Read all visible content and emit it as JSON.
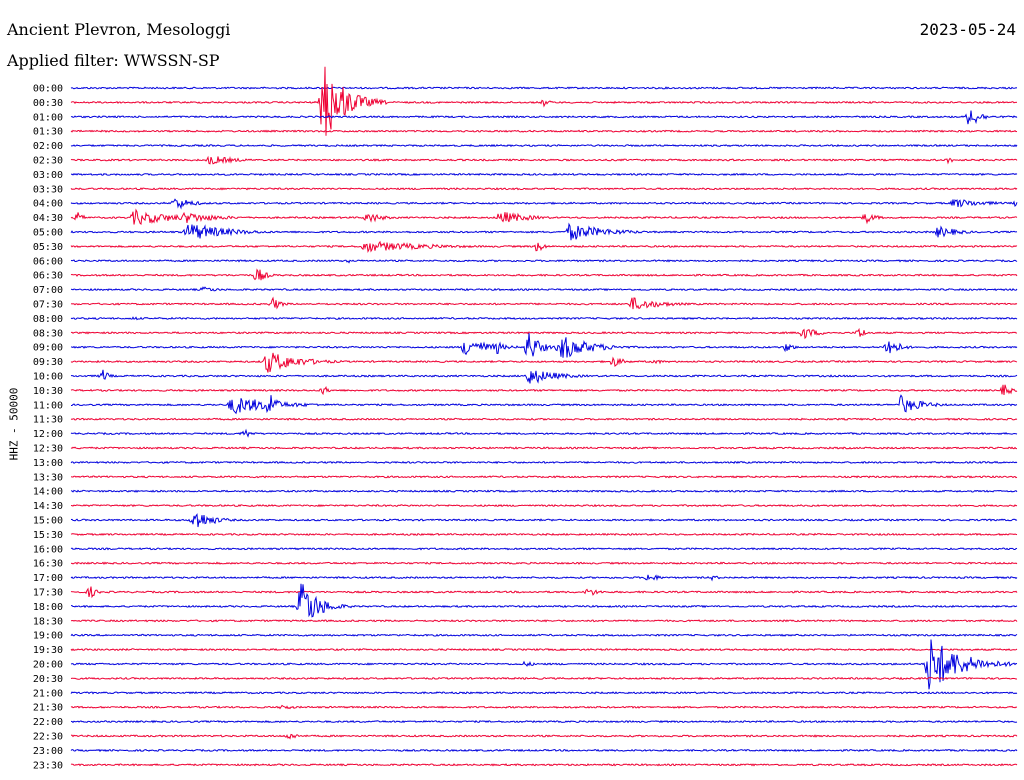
{
  "header": {
    "station": "Ancient Plevron, Mesologgi",
    "date": "2023-05-24",
    "filter_label": "Applied filter: WWSSN-SP"
  },
  "chart_data": {
    "type": "line",
    "title": "Ancient Plevron, Mesologgi",
    "ylabel": "HHZ - 50000",
    "colors": {
      "even": "#0000dd",
      "odd": "#ee0033"
    },
    "rows": [
      "00:00",
      "00:30",
      "01:00",
      "01:30",
      "02:00",
      "02:30",
      "03:00",
      "03:30",
      "04:00",
      "04:30",
      "05:00",
      "05:30",
      "06:00",
      "06:30",
      "07:00",
      "07:30",
      "08:00",
      "08:30",
      "09:00",
      "09:30",
      "10:00",
      "10:30",
      "11:00",
      "11:30",
      "12:00",
      "12:30",
      "13:00",
      "13:30",
      "14:00",
      "14:30",
      "15:00",
      "15:30",
      "16:00",
      "16:30",
      "17:00",
      "17:30",
      "18:00",
      "18:30",
      "19:00",
      "19:30",
      "20:00",
      "20:30",
      "21:00",
      "21:30",
      "22:00",
      "22:30",
      "23:00",
      "23:30"
    ],
    "x_range_minutes": [
      0,
      30
    ],
    "events": [
      {
        "row": 1,
        "t": 8.0,
        "amp": 45,
        "dur": 1.0
      },
      {
        "row": 1,
        "t": 15.0,
        "amp": 4,
        "dur": 0.3
      },
      {
        "row": 2,
        "t": 28.5,
        "amp": 12,
        "dur": 0.5
      },
      {
        "row": 5,
        "t": 4.4,
        "amp": 5,
        "dur": 1.2
      },
      {
        "row": 5,
        "t": 27.8,
        "amp": 3,
        "dur": 0.5
      },
      {
        "row": 8,
        "t": 3.3,
        "amp": 7,
        "dur": 0.8
      },
      {
        "row": 8,
        "t": 28.0,
        "amp": 5,
        "dur": 1.5
      },
      {
        "row": 8,
        "t": 30.0,
        "amp": 5,
        "dur": 1.0
      },
      {
        "row": 9,
        "t": 0.2,
        "amp": 6,
        "dur": 0.3
      },
      {
        "row": 9,
        "t": 2.0,
        "amp": 8,
        "dur": 2.0
      },
      {
        "row": 9,
        "t": 3.6,
        "amp": 6,
        "dur": 1.6
      },
      {
        "row": 9,
        "t": 9.4,
        "amp": 6,
        "dur": 0.7
      },
      {
        "row": 9,
        "t": 13.6,
        "amp": 7,
        "dur": 1.3
      },
      {
        "row": 9,
        "t": 25.2,
        "amp": 6,
        "dur": 0.5
      },
      {
        "row": 10,
        "t": 3.7,
        "amp": 10,
        "dur": 1.8
      },
      {
        "row": 10,
        "t": 15.8,
        "amp": 9,
        "dur": 1.8
      },
      {
        "row": 10,
        "t": 27.5,
        "amp": 6,
        "dur": 1.0
      },
      {
        "row": 11,
        "t": 9.3,
        "amp": 6,
        "dur": 3.0
      },
      {
        "row": 11,
        "t": 14.8,
        "amp": 7,
        "dur": 0.3
      },
      {
        "row": 12,
        "t": 8.8,
        "amp": 2,
        "dur": 0.3
      },
      {
        "row": 13,
        "t": 5.9,
        "amp": 9,
        "dur": 0.4
      },
      {
        "row": 14,
        "t": 4.2,
        "amp": 3,
        "dur": 0.8
      },
      {
        "row": 15,
        "t": 6.4,
        "amp": 7,
        "dur": 0.4
      },
      {
        "row": 15,
        "t": 17.8,
        "amp": 7,
        "dur": 1.4
      },
      {
        "row": 16,
        "t": 2.0,
        "amp": 2,
        "dur": 0.5
      },
      {
        "row": 17,
        "t": 23.2,
        "amp": 7,
        "dur": 0.7
      },
      {
        "row": 17,
        "t": 25.0,
        "amp": 7,
        "dur": 0.3
      },
      {
        "row": 18,
        "t": 12.5,
        "amp": 10,
        "dur": 1.2
      },
      {
        "row": 18,
        "t": 13.5,
        "amp": 8,
        "dur": 0.3
      },
      {
        "row": 18,
        "t": 14.5,
        "amp": 18,
        "dur": 0.5
      },
      {
        "row": 18,
        "t": 15.5,
        "amp": 14,
        "dur": 1.4
      },
      {
        "row": 18,
        "t": 22.7,
        "amp": 6,
        "dur": 0.3
      },
      {
        "row": 18,
        "t": 25.9,
        "amp": 12,
        "dur": 0.5
      },
      {
        "row": 19,
        "t": 6.2,
        "amp": 12,
        "dur": 1.5
      },
      {
        "row": 19,
        "t": 17.2,
        "amp": 6,
        "dur": 0.5
      },
      {
        "row": 19,
        "t": 18.5,
        "amp": 3,
        "dur": 0.4
      },
      {
        "row": 20,
        "t": 1.0,
        "amp": 7,
        "dur": 0.3
      },
      {
        "row": 20,
        "t": 14.5,
        "amp": 9,
        "dur": 1.3
      },
      {
        "row": 21,
        "t": 8.0,
        "amp": 5,
        "dur": 0.3
      },
      {
        "row": 21,
        "t": 29.6,
        "amp": 8,
        "dur": 0.3
      },
      {
        "row": 22,
        "t": 5.1,
        "amp": 10,
        "dur": 2.0
      },
      {
        "row": 22,
        "t": 6.3,
        "amp": 18,
        "dur": 0.3
      },
      {
        "row": 22,
        "t": 26.3,
        "amp": 10,
        "dur": 1.0
      },
      {
        "row": 24,
        "t": 5.5,
        "amp": 6,
        "dur": 0.3
      },
      {
        "row": 30,
        "t": 3.9,
        "amp": 12,
        "dur": 0.8
      },
      {
        "row": 34,
        "t": 18.3,
        "amp": 5,
        "dur": 0.5
      },
      {
        "row": 34,
        "t": 20.3,
        "amp": 3,
        "dur": 0.4
      },
      {
        "row": 35,
        "t": 0.6,
        "amp": 7,
        "dur": 0.3
      },
      {
        "row": 35,
        "t": 16.4,
        "amp": 5,
        "dur": 0.5
      },
      {
        "row": 36,
        "t": 7.3,
        "amp": 28,
        "dur": 0.8
      },
      {
        "row": 40,
        "t": 27.2,
        "amp": 30,
        "dur": 1.5
      },
      {
        "row": 40,
        "t": 14.4,
        "amp": 3,
        "dur": 0.5
      },
      {
        "row": 43,
        "t": 6.7,
        "amp": 3,
        "dur": 0.6
      },
      {
        "row": 45,
        "t": 6.9,
        "amp": 4,
        "dur": 0.5
      }
    ]
  }
}
